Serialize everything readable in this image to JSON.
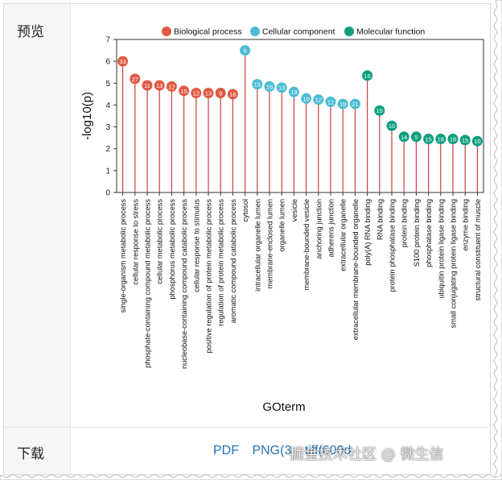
{
  "preview_label": "预览",
  "download_label": "下载",
  "download_links": {
    "pdf": "PDF",
    "png": "PNG(3",
    "tiff": "tiff(600d"
  },
  "watermark": "掘金技术社区 @ 微生信",
  "chart_data": {
    "type": "lollipop",
    "xlabel": "GOterm",
    "ylabel": "-log10(p)",
    "ylim": [
      0,
      7
    ],
    "yticks": [
      0,
      1,
      2,
      3,
      4,
      5,
      6,
      7
    ],
    "legend": [
      {
        "name": "Biological process",
        "color": "#e05a44"
      },
      {
        "name": "Cellular component",
        "color": "#4bbcd4"
      },
      {
        "name": "Molecular function",
        "color": "#0d9e7d"
      }
    ],
    "legend_position": "top",
    "stem_color": "#c94040",
    "points": [
      {
        "term": "single-organism metabolic process",
        "value": 6.0,
        "count": 33,
        "category": 0
      },
      {
        "term": "cellular response to stress",
        "value": 5.2,
        "count": 27,
        "category": 0
      },
      {
        "term": "phosphate-containing compound metabolic process",
        "value": 4.9,
        "count": 11,
        "category": 0
      },
      {
        "term": "cellular metabolic process",
        "value": 4.9,
        "count": 13,
        "category": 0
      },
      {
        "term": "phosphorus metabolic process",
        "value": 4.85,
        "count": 12,
        "category": 0
      },
      {
        "term": "nucleobase-containing compound catabolic process",
        "value": 4.65,
        "count": 15,
        "category": 0
      },
      {
        "term": "cellular response to stimulus",
        "value": 4.55,
        "count": 12,
        "category": 0
      },
      {
        "term": "positive regulation of protein metabolic process",
        "value": 4.55,
        "count": 13,
        "category": 0
      },
      {
        "term": "regulation of protein metabolic process",
        "value": 4.55,
        "count": 9,
        "category": 0
      },
      {
        "term": "aromatic compound catabolic process",
        "value": 4.5,
        "count": 16,
        "category": 0
      },
      {
        "term": "cytosol",
        "value": 6.5,
        "count": 6,
        "category": 1
      },
      {
        "term": "intracellular organelle lumen",
        "value": 4.95,
        "count": 15,
        "category": 1
      },
      {
        "term": "membrane-enclosed lumen",
        "value": 4.85,
        "count": 16,
        "category": 1
      },
      {
        "term": "organelle lumen",
        "value": 4.8,
        "count": 13,
        "category": 1
      },
      {
        "term": "vesicle",
        "value": 4.6,
        "count": 19,
        "category": 1
      },
      {
        "term": "membrane-bounded vesicle",
        "value": 4.3,
        "count": 10,
        "category": 1
      },
      {
        "term": "anchoring junction",
        "value": 4.25,
        "count": 12,
        "category": 1
      },
      {
        "term": "adherens junction",
        "value": 4.15,
        "count": 12,
        "category": 1
      },
      {
        "term": "extracellular organelle",
        "value": 4.05,
        "count": 19,
        "category": 1
      },
      {
        "term": "extracellular membrane-bounded organelle",
        "value": 4.05,
        "count": 21,
        "category": 1
      },
      {
        "term": "poly(A) RNA binding",
        "value": 5.35,
        "count": 16,
        "category": 2
      },
      {
        "term": "RNA binding",
        "value": 3.75,
        "count": 15,
        "category": 2
      },
      {
        "term": "protein phosphatase binding",
        "value": 3.05,
        "count": 10,
        "category": 2
      },
      {
        "term": "protein binding",
        "value": 2.55,
        "count": 14,
        "category": 2
      },
      {
        "term": "S100 protein binding",
        "value": 2.55,
        "count": 5,
        "category": 2
      },
      {
        "term": "phosphatase binding",
        "value": 2.45,
        "count": 15,
        "category": 2
      },
      {
        "term": "ubiquitin protein ligase binding",
        "value": 2.45,
        "count": 18,
        "category": 2
      },
      {
        "term": "small conjugating protein ligase binding",
        "value": 2.45,
        "count": 18,
        "category": 2
      },
      {
        "term": "enzyme binding",
        "value": 2.4,
        "count": 15,
        "category": 2
      },
      {
        "term": "structural constituent of muscle",
        "value": 2.35,
        "count": 10,
        "category": 2
      }
    ]
  }
}
